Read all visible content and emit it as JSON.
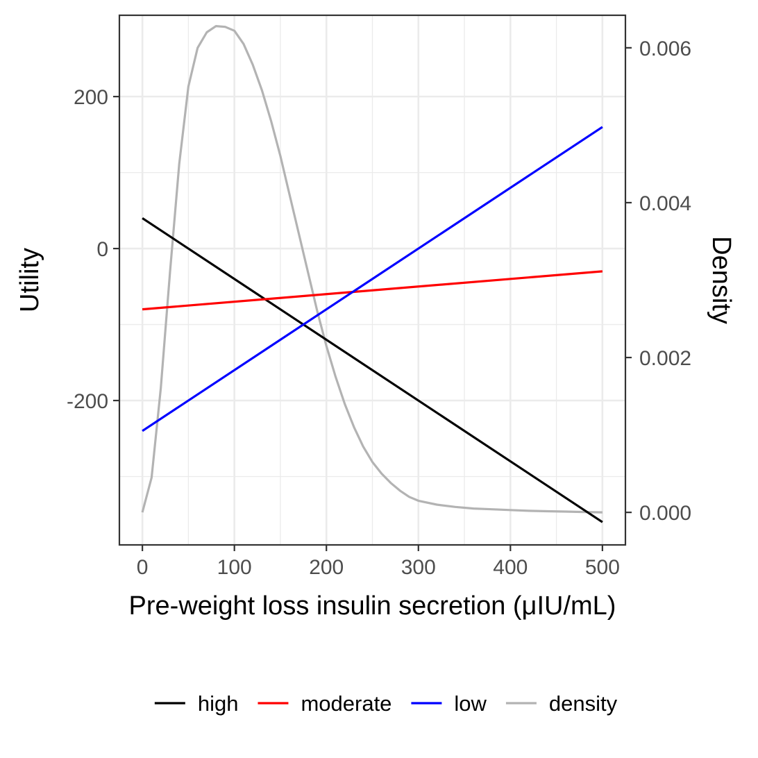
{
  "chart_data": {
    "type": "line",
    "title": "",
    "xlabel": "Pre-weight loss insulin secretion (μIU/mL)",
    "ylabel": "Utility",
    "y2label": "Density",
    "xlim": [
      -25,
      525
    ],
    "ylim": [
      -390,
      307
    ],
    "y2lim": [
      -0.00042,
      0.00642
    ],
    "x_ticks": [
      "0",
      "100",
      "200",
      "300",
      "400",
      "500"
    ],
    "x_tick_values": [
      0,
      100,
      200,
      300,
      400,
      500
    ],
    "x_minor_ticks": [
      50,
      150,
      250,
      350,
      450
    ],
    "y_ticks": [
      "-200",
      "0",
      "200"
    ],
    "y_tick_values": [
      -200,
      0,
      200
    ],
    "y_minor_ticks": [
      -300,
      -100,
      100
    ],
    "y2_ticks": [
      "0.000",
      "0.002",
      "0.004",
      "0.006"
    ],
    "y2_tick_values": [
      0,
      0.002,
      0.004,
      0.006
    ],
    "grid": true,
    "legend": {
      "position": "bottom"
    },
    "series": [
      {
        "name": "high",
        "color": "#000000",
        "axis": "left",
        "x": [
          0,
          500
        ],
        "values": [
          40,
          -360
        ]
      },
      {
        "name": "moderate",
        "color": "#ff0000",
        "axis": "left",
        "x": [
          0,
          500
        ],
        "values": [
          -80,
          -30
        ]
      },
      {
        "name": "low",
        "color": "#0000ff",
        "axis": "left",
        "x": [
          0,
          500
        ],
        "values": [
          -240,
          160
        ]
      },
      {
        "name": "density",
        "color": "#b3b3b3",
        "axis": "right",
        "x": [
          0,
          10,
          20,
          30,
          40,
          50,
          60,
          70,
          80,
          90,
          100,
          110,
          120,
          130,
          140,
          150,
          160,
          170,
          180,
          190,
          200,
          210,
          220,
          230,
          240,
          250,
          260,
          270,
          280,
          290,
          300,
          320,
          340,
          360,
          380,
          400,
          420,
          440,
          460,
          480,
          500
        ],
        "values": [
          0.0,
          0.00045,
          0.0016,
          0.0031,
          0.0045,
          0.0055,
          0.006,
          0.0062,
          0.00628,
          0.00627,
          0.00622,
          0.00605,
          0.00578,
          0.00545,
          0.00505,
          0.0046,
          0.0041,
          0.0036,
          0.0031,
          0.0026,
          0.00215,
          0.00175,
          0.0014,
          0.0011,
          0.00085,
          0.00065,
          0.0005,
          0.00038,
          0.00028,
          0.0002,
          0.00015,
          0.0001,
          7e-05,
          5e-05,
          4e-05,
          3e-05,
          2e-05,
          1.5e-05,
          1e-05,
          5e-06,
          0.0
        ]
      }
    ]
  }
}
